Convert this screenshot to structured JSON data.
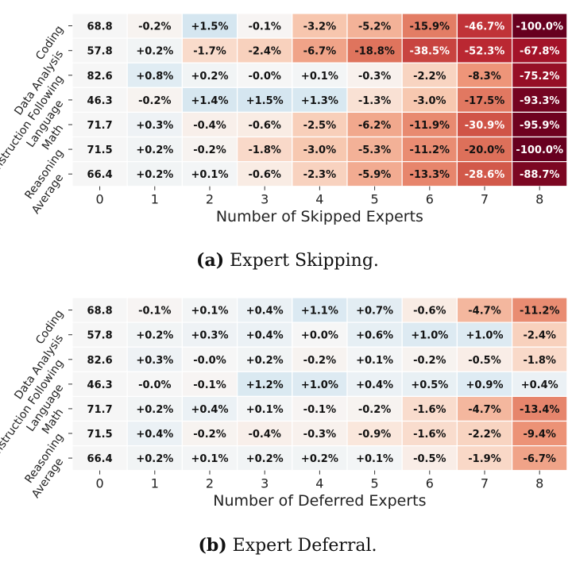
{
  "chart_data": [
    {
      "type": "heatmap",
      "panel_letter": "(a)",
      "caption": "Expert Skipping.",
      "xlabel": "Number of Skipped Experts",
      "x_ticks": [
        "0",
        "1",
        "2",
        "3",
        "4",
        "5",
        "6",
        "7",
        "8"
      ],
      "y_ticks": [
        "Coding",
        "Data Analysis",
        "Instruction Following",
        "Language",
        "Math",
        "Reasoning",
        "Average"
      ],
      "cells": [
        [
          "68.8",
          "-0.2%",
          "+1.5%",
          "-0.1%",
          "-3.2%",
          "-5.2%",
          "-15.9%",
          "-46.7%",
          "-100.0%"
        ],
        [
          "57.8",
          "+0.2%",
          "-1.7%",
          "-2.4%",
          "-6.7%",
          "-18.8%",
          "-38.5%",
          "-52.3%",
          "-67.8%"
        ],
        [
          "82.6",
          "+0.8%",
          "+0.2%",
          "-0.0%",
          "+0.1%",
          "-0.3%",
          "-2.2%",
          "-8.3%",
          "-75.2%"
        ],
        [
          "46.3",
          "-0.2%",
          "+1.4%",
          "+1.5%",
          "+1.3%",
          "-1.3%",
          "-3.0%",
          "-17.5%",
          "-93.3%"
        ],
        [
          "71.7",
          "+0.3%",
          "-0.4%",
          "-0.6%",
          "-2.5%",
          "-6.2%",
          "-11.9%",
          "-30.9%",
          "-95.9%"
        ],
        [
          "71.5",
          "+0.2%",
          "-0.2%",
          "-1.8%",
          "-3.0%",
          "-5.3%",
          "-11.2%",
          "-20.0%",
          "-100.0%"
        ],
        [
          "66.4",
          "+0.2%",
          "+0.1%",
          "-0.6%",
          "-2.3%",
          "-5.9%",
          "-13.3%",
          "-28.6%",
          "-88.7%"
        ]
      ]
    },
    {
      "type": "heatmap",
      "panel_letter": "(b)",
      "caption": "Expert Deferral.",
      "xlabel": "Number of Deferred Experts",
      "x_ticks": [
        "0",
        "1",
        "2",
        "3",
        "4",
        "5",
        "6",
        "7",
        "8"
      ],
      "y_ticks": [
        "Coding",
        "Data Analysis",
        "Instruction Following",
        "Language",
        "Math",
        "Reasoning",
        "Average"
      ],
      "cells": [
        [
          "68.8",
          "-0.1%",
          "+0.1%",
          "+0.4%",
          "+1.1%",
          "+0.7%",
          "-0.6%",
          "-4.7%",
          "-11.2%"
        ],
        [
          "57.8",
          "+0.2%",
          "+0.3%",
          "+0.4%",
          "+0.0%",
          "+0.6%",
          "+1.0%",
          "+1.0%",
          "-2.4%"
        ],
        [
          "82.6",
          "+0.3%",
          "-0.0%",
          "+0.2%",
          "-0.2%",
          "+0.1%",
          "-0.2%",
          "-0.5%",
          "-1.8%"
        ],
        [
          "46.3",
          "-0.0%",
          "-0.1%",
          "+1.2%",
          "+1.0%",
          "+0.4%",
          "+0.5%",
          "+0.9%",
          "+0.4%"
        ],
        [
          "71.7",
          "+0.2%",
          "+0.4%",
          "+0.1%",
          "-0.1%",
          "-0.2%",
          "-1.6%",
          "-4.7%",
          "-13.4%"
        ],
        [
          "71.5",
          "+0.4%",
          "-0.2%",
          "-0.4%",
          "-0.3%",
          "-0.9%",
          "-1.6%",
          "-2.2%",
          "-9.4%"
        ],
        [
          "66.4",
          "+0.2%",
          "+0.1%",
          "+0.2%",
          "+0.2%",
          "+0.1%",
          "-0.5%",
          "-1.9%",
          "-6.7%"
        ]
      ]
    }
  ]
}
